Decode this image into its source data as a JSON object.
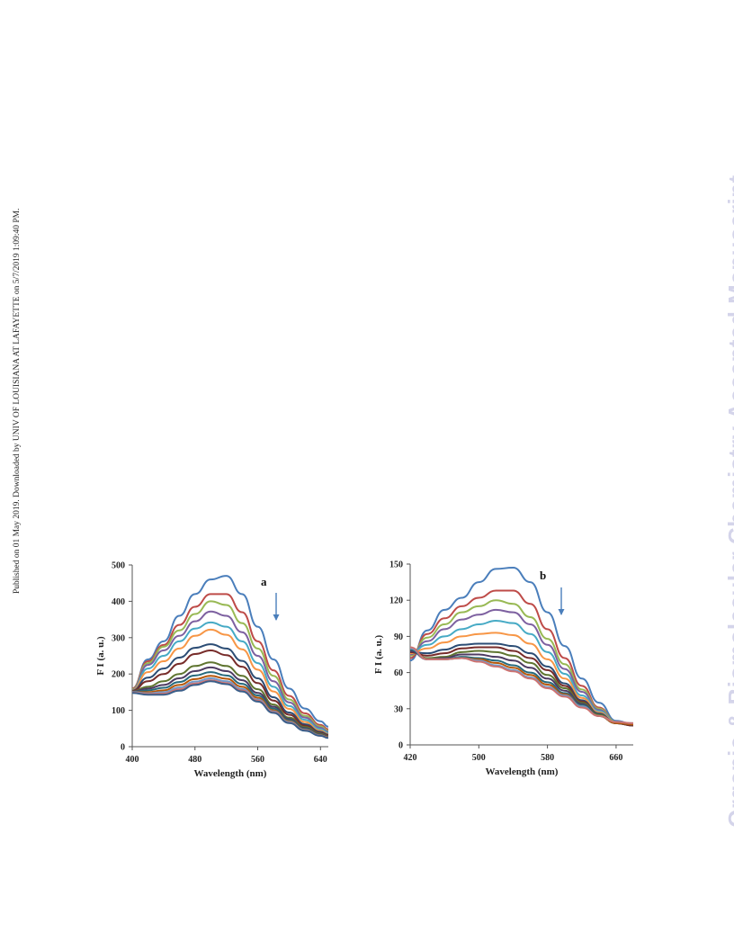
{
  "side_note": "Published on 01 May 2019. Downloaded by UNIV OF LOUISIANA AT LAFAYETTE on 5/7/2019 1:09:40 PM.",
  "watermark": "Organic & Biomolecular Chemistry Accepted Manuscript",
  "colors": [
    "#4a7ebb",
    "#be4b48",
    "#98b954",
    "#7d60a0",
    "#46aac5",
    "#f79646",
    "#2c4d75",
    "#772c2a",
    "#5f7530",
    "#4d3b62",
    "#276a7c",
    "#b65708",
    "#729aca",
    "#cd7371",
    "#3a5f8a"
  ],
  "chart_data": [
    {
      "type": "line",
      "panel_label": "a",
      "xlabel": "Wavelength  (nm)",
      "ylabel": "F I  (a. u.)",
      "xlim": [
        400,
        650
      ],
      "ylim": [
        0,
        500
      ],
      "xticks": [
        400,
        480,
        560,
        640
      ],
      "yticks": [
        0,
        100,
        200,
        300,
        400,
        500
      ],
      "grid": false,
      "x": [
        400,
        420,
        440,
        460,
        480,
        500,
        520,
        540,
        560,
        580,
        600,
        620,
        640,
        650
      ],
      "series": [
        {
          "values": [
            160,
            240,
            290,
            360,
            420,
            460,
            470,
            420,
            330,
            240,
            160,
            105,
            70,
            55
          ]
        },
        {
          "values": [
            160,
            235,
            280,
            335,
            385,
            420,
            420,
            370,
            290,
            210,
            140,
            92,
            60,
            48
          ]
        },
        {
          "values": [
            158,
            230,
            275,
            320,
            365,
            400,
            390,
            340,
            270,
            195,
            130,
            85,
            56,
            44
          ]
        },
        {
          "values": [
            156,
            225,
            265,
            305,
            345,
            372,
            360,
            315,
            250,
            180,
            122,
            80,
            52,
            41
          ]
        },
        {
          "values": [
            155,
            215,
            250,
            290,
            325,
            342,
            330,
            290,
            230,
            165,
            112,
            74,
            48,
            38
          ]
        },
        {
          "values": [
            155,
            205,
            235,
            270,
            305,
            322,
            308,
            268,
            212,
            152,
            104,
            68,
            44,
            35
          ]
        },
        {
          "values": [
            154,
            190,
            215,
            245,
            272,
            282,
            270,
            236,
            188,
            136,
            94,
            62,
            41,
            33
          ]
        },
        {
          "values": [
            153,
            180,
            200,
            228,
            255,
            265,
            252,
            220,
            175,
            127,
            88,
            58,
            38,
            31
          ]
        },
        {
          "values": [
            152,
            165,
            180,
            200,
            222,
            232,
            222,
            195,
            158,
            116,
            80,
            54,
            36,
            29
          ]
        },
        {
          "values": [
            151,
            160,
            170,
            188,
            208,
            218,
            208,
            183,
            148,
            110,
            76,
            51,
            34,
            28
          ]
        },
        {
          "values": [
            150,
            155,
            162,
            178,
            196,
            205,
            196,
            173,
            141,
            105,
            73,
            49,
            33,
            27
          ]
        },
        {
          "values": [
            150,
            150,
            155,
            170,
            186,
            195,
            187,
            165,
            135,
            100,
            70,
            47,
            32,
            26
          ]
        },
        {
          "values": [
            150,
            147,
            150,
            163,
            179,
            188,
            180,
            159,
            130,
            97,
            68,
            46,
            31,
            25
          ]
        },
        {
          "values": [
            149,
            145,
            146,
            158,
            174,
            183,
            175,
            155,
            127,
            95,
            66,
            45,
            30,
            25
          ]
        },
        {
          "values": [
            148,
            143,
            143,
            154,
            170,
            180,
            172,
            152,
            124,
            93,
            65,
            44,
            30,
            24
          ]
        }
      ]
    },
    {
      "type": "line",
      "panel_label": "b",
      "xlabel": "Wavelength  (nm)",
      "ylabel": "F I  (a. u.)",
      "xlim": [
        420,
        680
      ],
      "ylim": [
        0,
        150
      ],
      "xticks": [
        420,
        500,
        580,
        660
      ],
      "yticks": [
        0,
        30,
        60,
        90,
        120,
        150
      ],
      "grid": false,
      "x": [
        420,
        440,
        460,
        480,
        500,
        520,
        540,
        560,
        580,
        600,
        620,
        640,
        660,
        680
      ],
      "series": [
        {
          "values": [
            70,
            95,
            112,
            122,
            135,
            146,
            147,
            135,
            110,
            82,
            55,
            35,
            20,
            17
          ]
        },
        {
          "values": [
            72,
            92,
            105,
            115,
            122,
            128,
            128,
            117,
            96,
            72,
            49,
            31,
            19,
            16
          ]
        },
        {
          "values": [
            74,
            89,
            100,
            110,
            115,
            120,
            117,
            106,
            88,
            67,
            46,
            30,
            19,
            16
          ]
        },
        {
          "values": [
            75,
            86,
            96,
            104,
            108,
            112,
            110,
            100,
            83,
            63,
            44,
            29,
            18,
            16
          ]
        },
        {
          "values": [
            76,
            83,
            90,
            96,
            100,
            103,
            101,
            92,
            77,
            59,
            41,
            28,
            18,
            16
          ]
        },
        {
          "values": [
            76,
            80,
            85,
            90,
            92,
            93,
            91,
            84,
            71,
            55,
            39,
            27,
            18,
            16
          ]
        },
        {
          "values": [
            77,
            76,
            79,
            83,
            84,
            84,
            82,
            76,
            65,
            51,
            37,
            26,
            18,
            16
          ]
        },
        {
          "values": [
            77,
            74,
            76,
            80,
            81,
            81,
            78,
            72,
            62,
            49,
            36,
            25,
            18,
            16
          ]
        },
        {
          "values": [
            78,
            72,
            73,
            77,
            78,
            77,
            74,
            68,
            58,
            47,
            35,
            25,
            18,
            17
          ]
        },
        {
          "values": [
            78,
            71,
            72,
            75,
            75,
            73,
            70,
            64,
            55,
            45,
            34,
            24,
            18,
            17
          ]
        },
        {
          "values": [
            79,
            71,
            71,
            73,
            72,
            70,
            66,
            60,
            52,
            43,
            33,
            24,
            18,
            17
          ]
        },
        {
          "values": [
            80,
            71,
            71,
            72,
            71,
            68,
            64,
            58,
            50,
            42,
            32,
            24,
            18,
            17
          ]
        },
        {
          "values": [
            80,
            71,
            71,
            72,
            70,
            66,
            62,
            56,
            48,
            41,
            32,
            24,
            19,
            18
          ]
        },
        {
          "values": [
            81,
            71,
            71,
            72,
            69,
            65,
            61,
            55,
            47,
            40,
            31,
            24,
            19,
            18
          ]
        }
      ]
    }
  ]
}
